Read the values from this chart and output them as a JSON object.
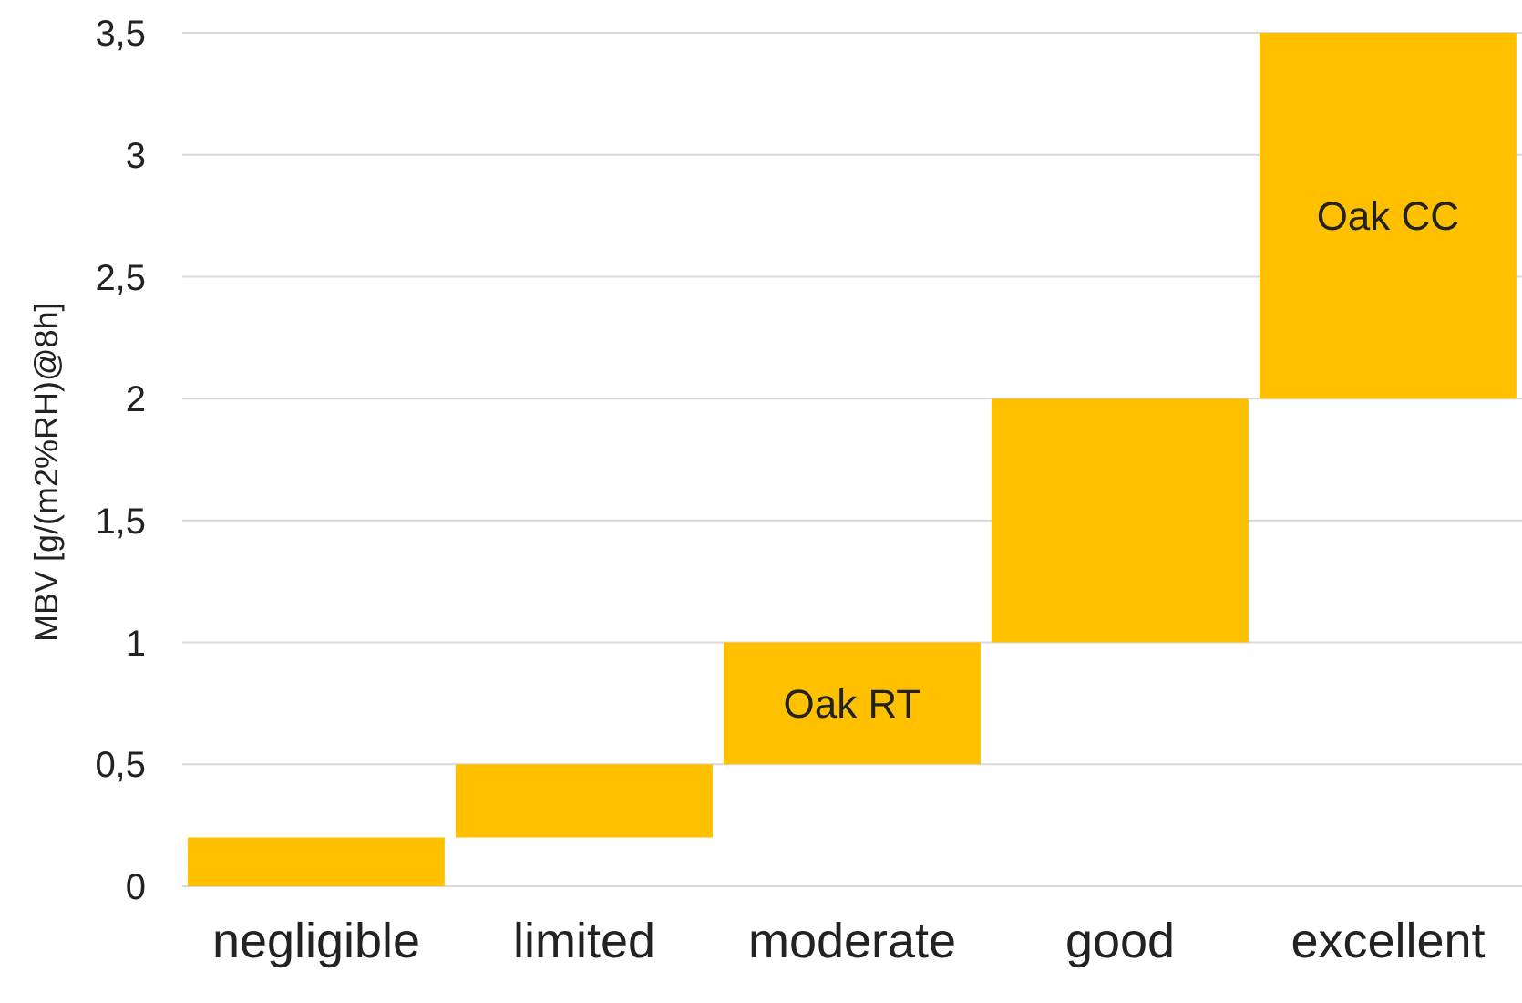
{
  "chart_data": {
    "type": "bar",
    "ylabel": "MBV [g/(m2%RH)@8h]",
    "categories": [
      "negligible",
      "limited",
      "moderate",
      "good",
      "excellent"
    ],
    "values": [
      0.2,
      0.3,
      0.5,
      1,
      1.5
    ],
    "base": [
      0,
      0.2,
      0.5,
      1,
      2
    ],
    "color": "#ffc000",
    "ylim": [
      0,
      3.5
    ],
    "yticks": [
      0,
      {
        "value": 0.5,
        "label": "0,5"
      },
      1,
      {
        "value": 1.5,
        "label": "1,5"
      },
      2,
      {
        "value": 2.5,
        "label": "2,5"
      },
      3,
      {
        "value": 3.5,
        "label": "3,5"
      }
    ],
    "grid": "y",
    "value_labels": [
      null,
      null,
      "Oak RT",
      null,
      "Oak CC"
    ]
  }
}
